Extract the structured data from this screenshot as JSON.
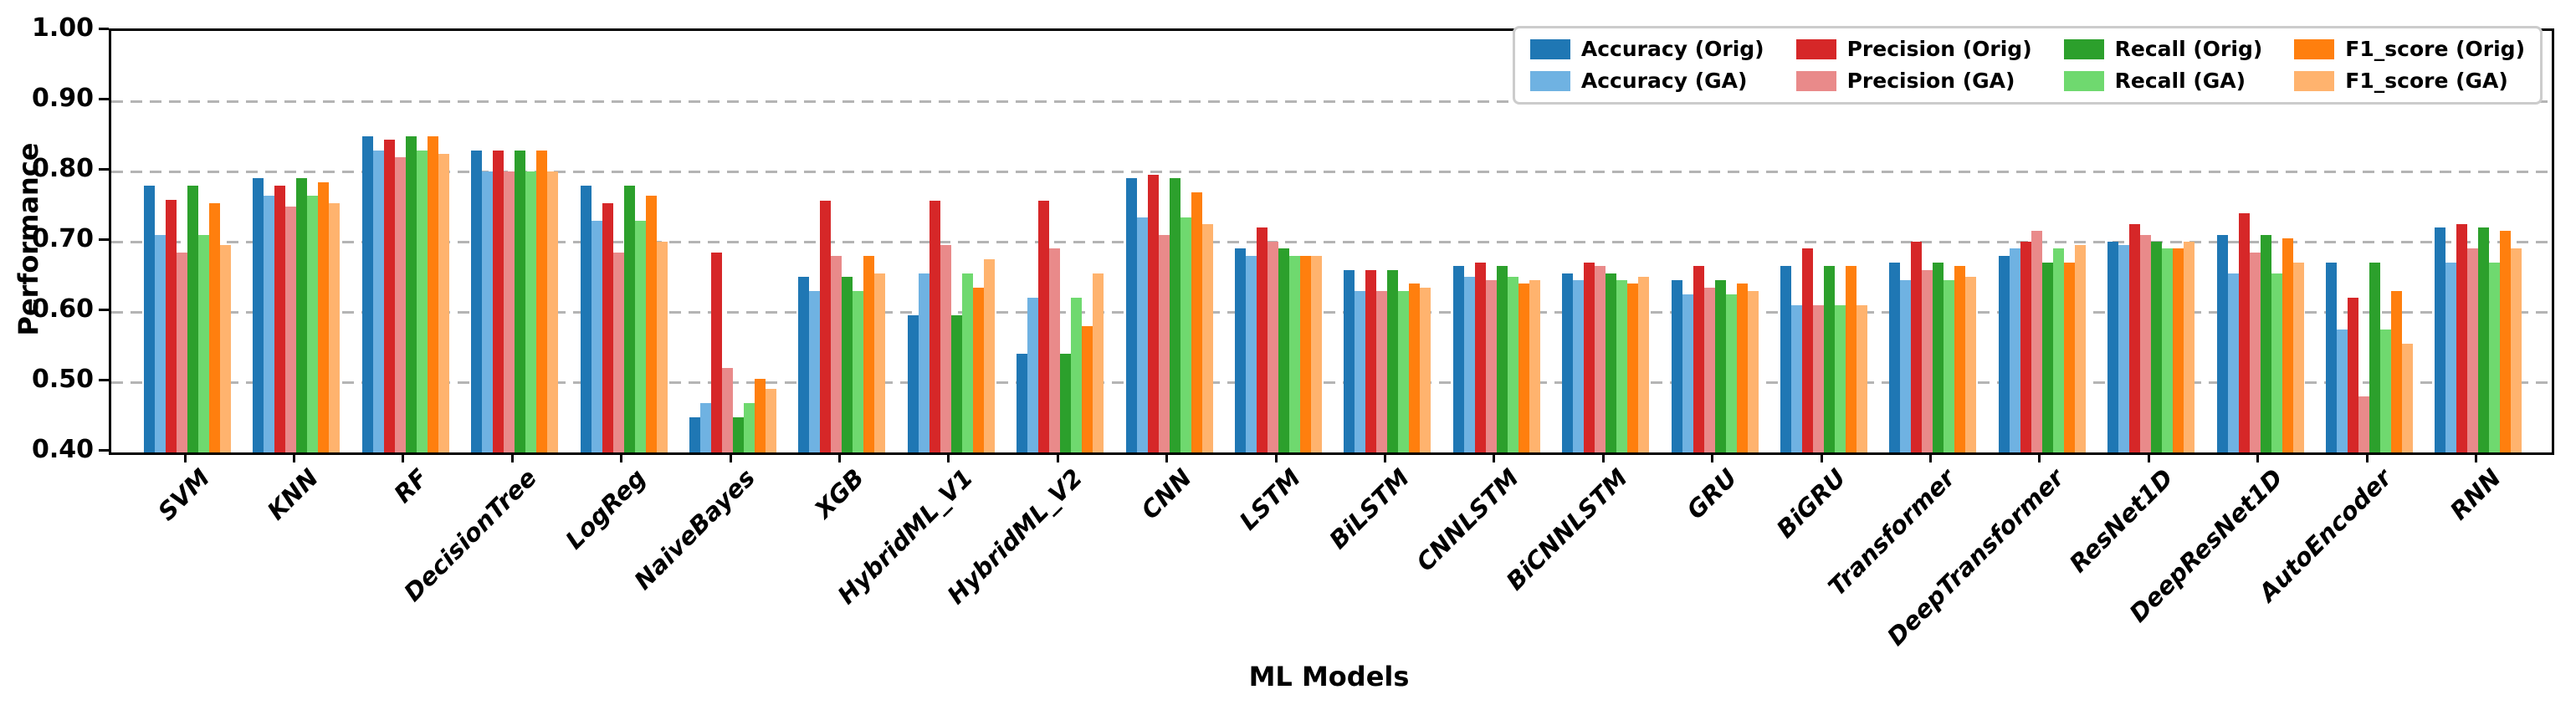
{
  "chart_data": {
    "type": "bar",
    "title": "",
    "xlabel": "ML Models",
    "ylabel": "Performance",
    "ylim": [
      0.4,
      1.0
    ],
    "yticks": [
      "0.40",
      "0.50",
      "0.60",
      "0.70",
      "0.80",
      "0.90",
      "1.00"
    ],
    "grid": "horizontal dashed gridlines",
    "legend_position": "upper right, 4 columns x 2 rows",
    "categories": [
      "SVM",
      "KNN",
      "RF",
      "DecisionTree",
      "LogReg",
      "NaiveBayes",
      "XGB",
      "HybridML_V1",
      "HybridML_V2",
      "CNN",
      "LSTM",
      "BiLSTM",
      "CNNLSTM",
      "BiCNNLSTM",
      "GRU",
      "BiGRU",
      "Transformer",
      "DeepTransformer",
      "ResNet1D",
      "DeepResNet1D",
      "AutoEncoder",
      "RNN"
    ],
    "series": [
      {
        "name": "Accuracy (Orig)",
        "color": "#1f77b4",
        "values": [
          0.78,
          0.79,
          0.85,
          0.83,
          0.78,
          0.45,
          0.65,
          0.595,
          0.54,
          0.79,
          0.69,
          0.66,
          0.665,
          0.655,
          0.645,
          0.665,
          0.67,
          0.68,
          0.7,
          0.71,
          0.67,
          0.72
        ]
      },
      {
        "name": "Accuracy (GA)",
        "color": "#6fb2e2",
        "values": [
          0.71,
          0.765,
          0.83,
          0.8,
          0.73,
          0.47,
          0.63,
          0.655,
          0.62,
          0.735,
          0.68,
          0.63,
          0.65,
          0.645,
          0.625,
          0.61,
          0.645,
          0.69,
          0.695,
          0.655,
          0.575,
          0.67
        ]
      },
      {
        "name": "Precision (Orig)",
        "color": "#d62728",
        "values": [
          0.76,
          0.78,
          0.845,
          0.83,
          0.755,
          0.685,
          0.758,
          0.758,
          0.758,
          0.795,
          0.72,
          0.66,
          0.67,
          0.67,
          0.665,
          0.69,
          0.7,
          0.7,
          0.725,
          0.74,
          0.62,
          0.725
        ]
      },
      {
        "name": "Precision (GA)",
        "color": "#e98a8a",
        "values": [
          0.685,
          0.75,
          0.82,
          0.8,
          0.685,
          0.52,
          0.68,
          0.695,
          0.69,
          0.71,
          0.7,
          0.63,
          0.645,
          0.665,
          0.635,
          0.61,
          0.66,
          0.715,
          0.71,
          0.685,
          0.48,
          0.69
        ]
      },
      {
        "name": "Recall (Orig)",
        "color": "#2ca02c",
        "values": [
          0.78,
          0.79,
          0.85,
          0.83,
          0.78,
          0.45,
          0.65,
          0.595,
          0.54,
          0.79,
          0.69,
          0.66,
          0.665,
          0.655,
          0.645,
          0.665,
          0.67,
          0.67,
          0.7,
          0.71,
          0.67,
          0.72
        ]
      },
      {
        "name": "Recall (GA)",
        "color": "#6fd96f",
        "values": [
          0.71,
          0.765,
          0.83,
          0.8,
          0.73,
          0.47,
          0.63,
          0.655,
          0.62,
          0.735,
          0.68,
          0.63,
          0.65,
          0.645,
          0.625,
          0.61,
          0.645,
          0.69,
          0.69,
          0.655,
          0.575,
          0.67
        ]
      },
      {
        "name": "F1_score (Orig)",
        "color": "#ff7f0e",
        "values": [
          0.755,
          0.785,
          0.85,
          0.83,
          0.765,
          0.505,
          0.68,
          0.635,
          0.58,
          0.77,
          0.68,
          0.64,
          0.64,
          0.64,
          0.64,
          0.665,
          0.665,
          0.67,
          0.69,
          0.705,
          0.63,
          0.715
        ]
      },
      {
        "name": "F1_score (GA)",
        "color": "#ffb36e",
        "values": [
          0.695,
          0.755,
          0.825,
          0.8,
          0.7,
          0.49,
          0.655,
          0.675,
          0.655,
          0.725,
          0.68,
          0.635,
          0.645,
          0.65,
          0.63,
          0.61,
          0.65,
          0.695,
          0.7,
          0.67,
          0.555,
          0.69
        ]
      }
    ]
  }
}
